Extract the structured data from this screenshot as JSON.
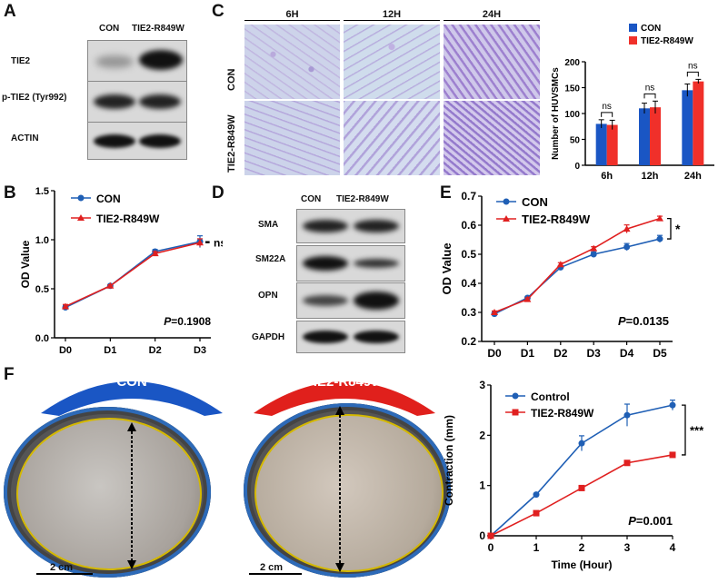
{
  "panels": {
    "A": "A",
    "B": "B",
    "C": "C",
    "D": "D",
    "E": "E",
    "F": "F"
  },
  "colors": {
    "con": "#1f5fb5",
    "mut": "#e02020",
    "con_bar": "#1a56c4",
    "mut_bar": "#f0302a"
  },
  "panelA": {
    "columns": [
      "CON",
      "TIE2-R849W"
    ],
    "rows": [
      "TIE2",
      "p-TIE2 (Tyr992)",
      "ACTIN"
    ]
  },
  "panelC": {
    "times": [
      "6H",
      "12H",
      "24H"
    ],
    "rows": [
      "CON",
      "TIE2-R849W"
    ]
  },
  "panelD": {
    "columns": [
      "CON",
      "TIE2-R849W"
    ],
    "rows": [
      "SMA",
      "SM22A",
      "OPN",
      "GAPDH"
    ]
  },
  "panelF": {
    "con_banner": "CON",
    "mut_banner": "TIE2-R849W",
    "scale1": "2 cm",
    "scale2": "2 cm"
  },
  "chart_data": [
    {
      "id": "B",
      "type": "line",
      "x": [
        "D0",
        "D1",
        "D2",
        "D3"
      ],
      "series": [
        {
          "name": "CON",
          "values": [
            0.31,
            0.53,
            0.88,
            0.98
          ],
          "err": [
            0.02,
            0.01,
            0.02,
            0.06
          ]
        },
        {
          "name": "TIE2-R849W",
          "values": [
            0.32,
            0.53,
            0.86,
            0.97
          ],
          "err": [
            0.02,
            0.01,
            0.02,
            0.04
          ]
        }
      ],
      "ylabel": "OD Value",
      "ylim": [
        0.0,
        1.5
      ],
      "yticks": [
        "0.0",
        "0.5",
        "1.0",
        "1.5"
      ],
      "sig": "ns",
      "p_prefix": "P",
      "p_value": "=0.1908"
    },
    {
      "id": "C",
      "type": "bar",
      "categories": [
        "6h",
        "12h",
        "24h"
      ],
      "series": [
        {
          "name": "CON",
          "values": [
            80,
            110,
            145
          ],
          "err": [
            8,
            10,
            12
          ]
        },
        {
          "name": "TIE2-R849W",
          "values": [
            78,
            112,
            162
          ],
          "err": [
            9,
            12,
            4
          ]
        }
      ],
      "ylabel": "Number of HUVSMCs",
      "ylim": [
        0,
        200
      ],
      "yticks": [
        "0",
        "50",
        "100",
        "150",
        "200"
      ],
      "sig": [
        "ns",
        "ns",
        "ns"
      ]
    },
    {
      "id": "E",
      "type": "line",
      "x": [
        "D0",
        "D1",
        "D2",
        "D3",
        "D4",
        "D5"
      ],
      "series": [
        {
          "name": "CON",
          "values": [
            0.295,
            0.35,
            0.455,
            0.5,
            0.525,
            0.553
          ],
          "err": [
            0.005,
            0.005,
            0.006,
            0.008,
            0.012,
            0.012
          ]
        },
        {
          "name": "TIE2-R849W",
          "values": [
            0.3,
            0.345,
            0.465,
            0.52,
            0.587,
            0.623
          ],
          "err": [
            0.005,
            0.005,
            0.006,
            0.006,
            0.014,
            0.008
          ]
        }
      ],
      "ylabel": "OD Value",
      "ylim": [
        0.2,
        0.7
      ],
      "yticks": [
        "0.2",
        "0.3",
        "0.4",
        "0.5",
        "0.6",
        "0.7"
      ],
      "sig": "*",
      "p_prefix": "P",
      "p_value": "=0.0135"
    },
    {
      "id": "F",
      "type": "line",
      "x": [
        "0",
        "1",
        "2",
        "3",
        "4"
      ],
      "series": [
        {
          "name": "Control",
          "values": [
            0,
            0.82,
            1.84,
            2.4,
            2.6
          ],
          "err": [
            0,
            0.02,
            0.15,
            0.22,
            0.1
          ]
        },
        {
          "name": "TIE2-R849W",
          "values": [
            0,
            0.45,
            0.95,
            1.45,
            1.61
          ],
          "err": [
            0,
            0.02,
            0.02,
            0.04,
            0.04
          ]
        }
      ],
      "xlabel": "Time (Hour)",
      "ylabel": "Contraction (mm)",
      "ylim": [
        0,
        3
      ],
      "yticks": [
        "0",
        "1",
        "2",
        "3"
      ],
      "sig": "***",
      "p_prefix": "P",
      "p_value": "=0.001"
    }
  ]
}
